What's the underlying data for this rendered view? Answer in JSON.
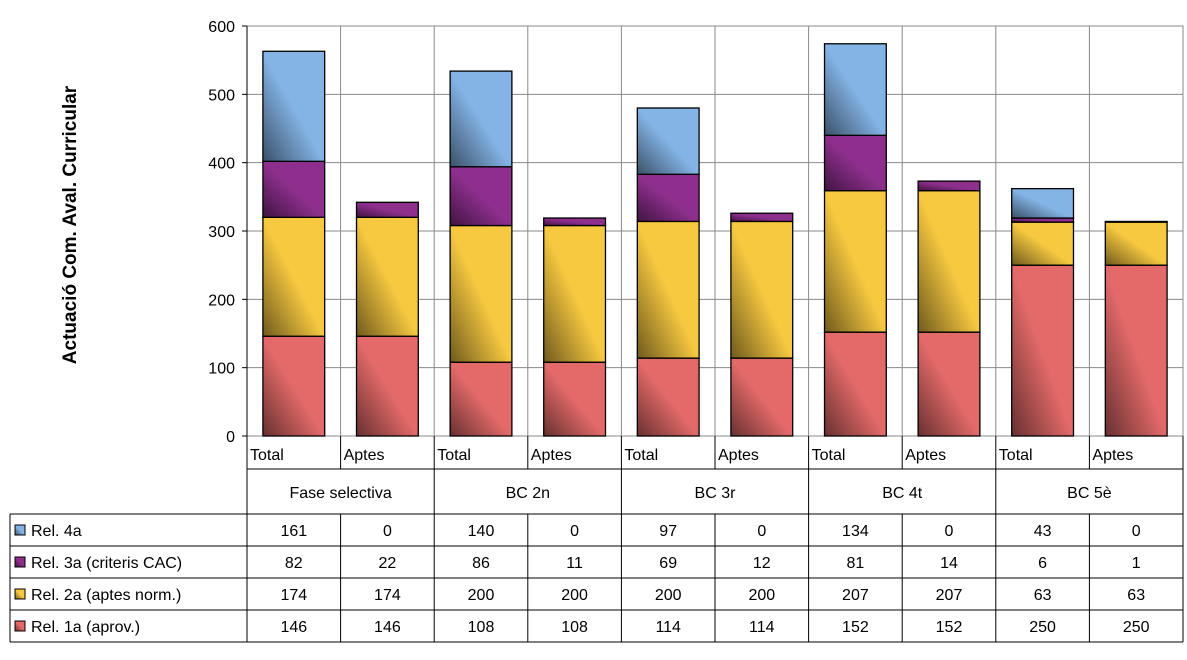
{
  "chart_data": {
    "type": "bar",
    "stacked": true,
    "ylabel": "Actuació Com. Aval. Curricular",
    "ylim": [
      0,
      600
    ],
    "yticks": [
      0,
      100,
      200,
      300,
      400,
      500,
      600
    ],
    "grid": true,
    "legend": "data-table",
    "groups": [
      "Fase selectiva",
      "BC 2n",
      "BC 3r",
      "BC 4t",
      "BC 5è"
    ],
    "categories": [
      "Total",
      "Aptes",
      "Total",
      "Aptes",
      "Total",
      "Aptes",
      "Total",
      "Aptes",
      "Total",
      "Aptes"
    ],
    "series": [
      {
        "name": "Rel. 1a (aprov.)",
        "color": "#e46a6a",
        "values": [
          146,
          146,
          108,
          108,
          114,
          114,
          152,
          152,
          250,
          250
        ]
      },
      {
        "name": "Rel. 2a (aptes norm.)",
        "color": "#f7c940",
        "values": [
          174,
          174,
          200,
          200,
          200,
          200,
          207,
          207,
          63,
          63
        ]
      },
      {
        "name": "Rel. 3a (criteris CAC)",
        "color": "#8e2f8e",
        "values": [
          82,
          22,
          86,
          11,
          69,
          12,
          81,
          14,
          6,
          1
        ]
      },
      {
        "name": "Rel. 4a",
        "color": "#84b4e6",
        "values": [
          161,
          0,
          140,
          0,
          97,
          0,
          134,
          0,
          43,
          0
        ]
      }
    ]
  }
}
